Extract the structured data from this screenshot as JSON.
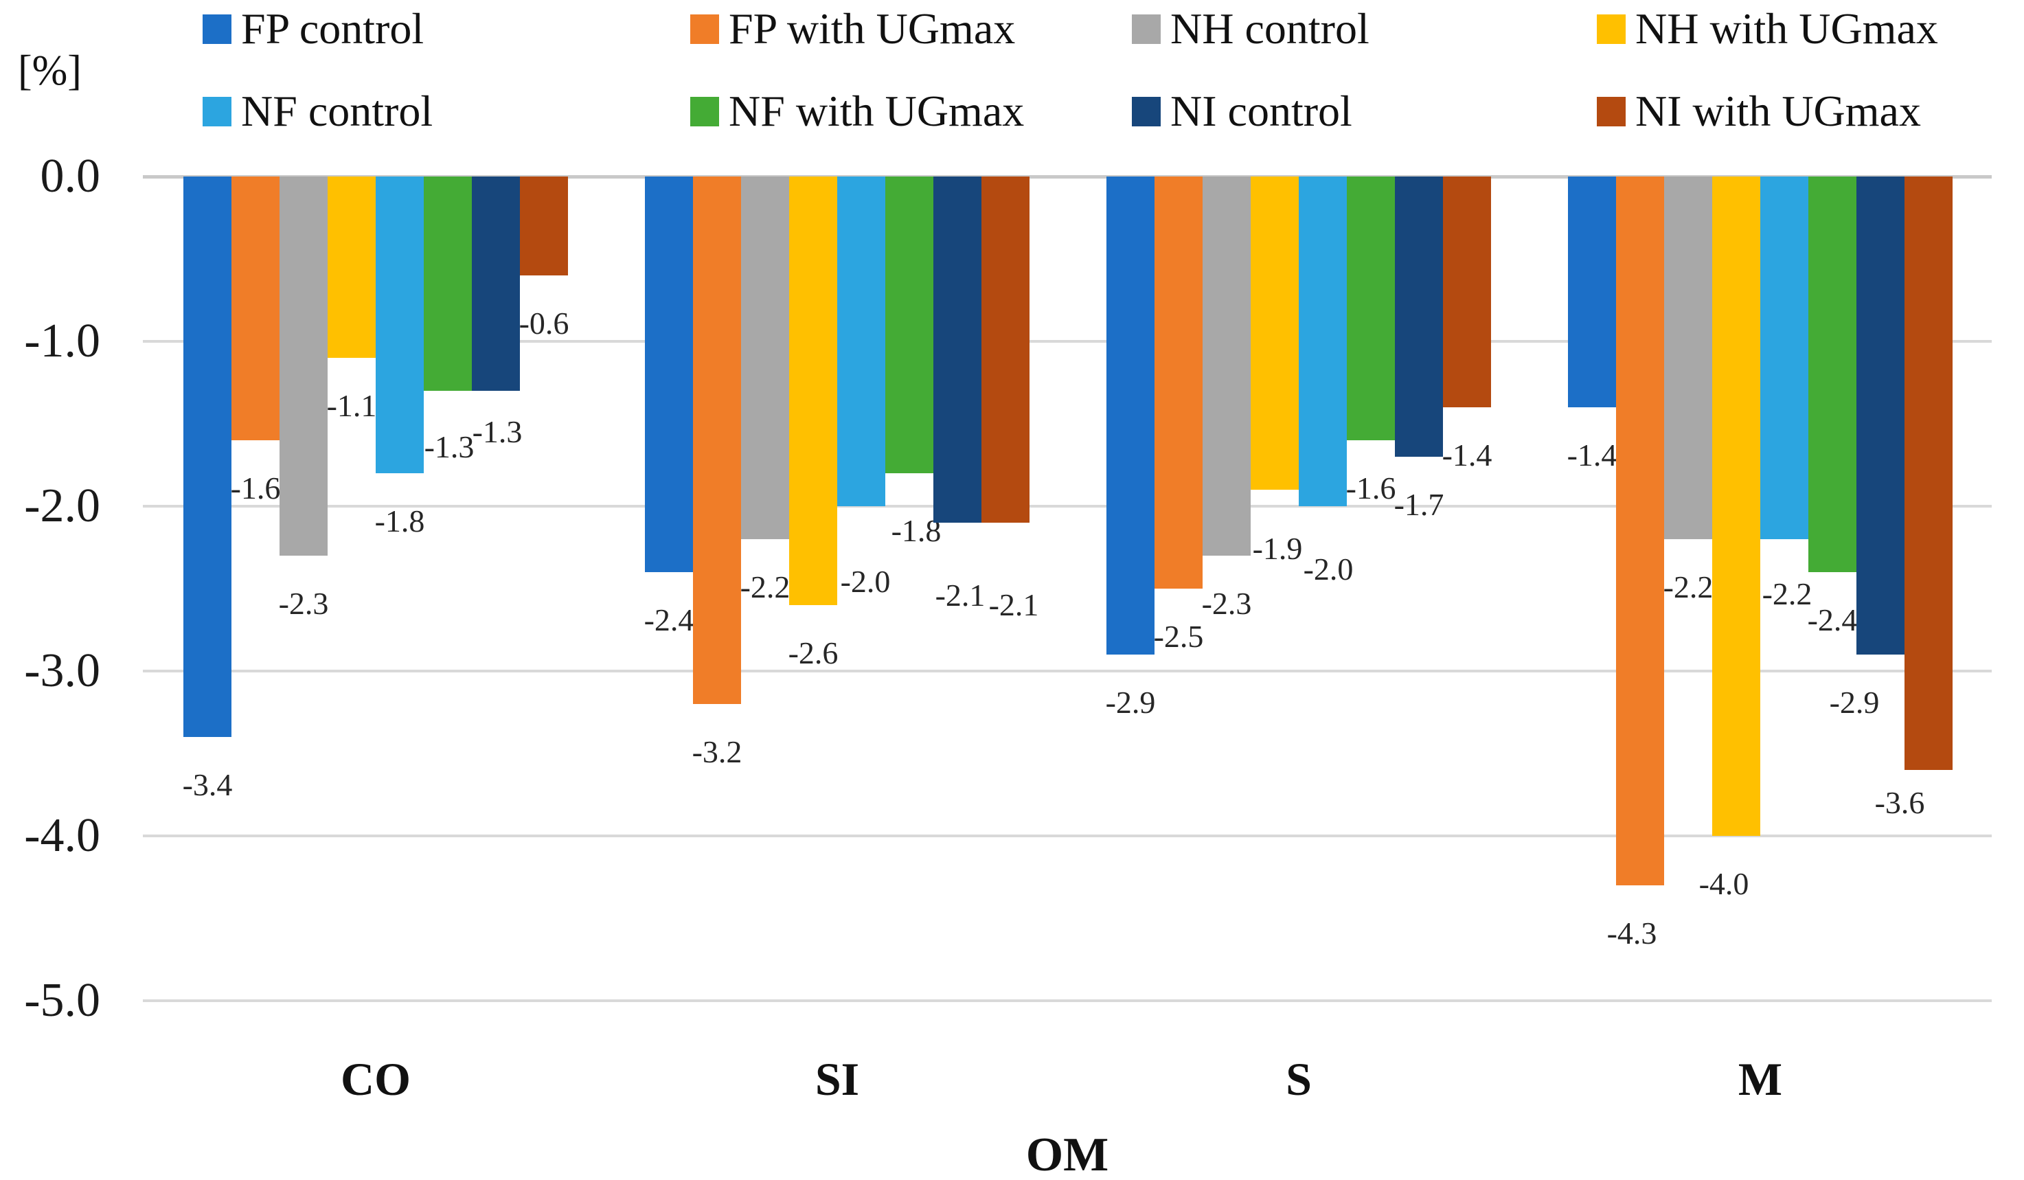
{
  "chart_data": {
    "type": "bar",
    "title": "",
    "unit_label": "[%]",
    "xlabel": "OM",
    "ylabel": "",
    "categories": [
      "CO",
      "SI",
      "S",
      "M"
    ],
    "series": [
      {
        "name": "FP control",
        "color": "#1C6FC7",
        "values": [
          -3.4,
          -2.4,
          -2.9,
          -1.4
        ]
      },
      {
        "name": "FP with UGmax",
        "color": "#F07D28",
        "values": [
          -1.6,
          -3.2,
          -2.5,
          -4.3
        ]
      },
      {
        "name": "NH control",
        "color": "#A8A8A8",
        "values": [
          -2.3,
          -2.2,
          -2.3,
          -2.2
        ]
      },
      {
        "name": "NH with UGmax",
        "color": "#FFC000",
        "values": [
          -1.1,
          -2.6,
          -1.9,
          -4.0
        ]
      },
      {
        "name": "NF control",
        "color": "#2CA5E0",
        "values": [
          -1.8,
          -2.0,
          -2.0,
          -2.2
        ]
      },
      {
        "name": "NF with UGmax",
        "color": "#44AB35",
        "values": [
          -1.3,
          -1.8,
          -1.6,
          -2.4
        ]
      },
      {
        "name": "NI control",
        "color": "#17467B",
        "values": [
          -1.3,
          -2.1,
          -1.7,
          -2.9
        ]
      },
      {
        "name": "NI with UGmax",
        "color": "#B44A10",
        "values": [
          -0.6,
          -2.1,
          -1.4,
          -3.6
        ]
      }
    ],
    "y_axis": {
      "min": -5.0,
      "max": 0.0,
      "step": 1.0,
      "tick_labels": [
        "0.0",
        "-1.0",
        "-2.0",
        "-3.0",
        "-4.0",
        "-5.0"
      ]
    },
    "value_labels": {
      "CO": [
        "-3.4",
        "-1.6",
        "-2.3",
        "-1.1",
        "-1.8",
        "-1.3",
        "-1.3",
        "-0.6"
      ],
      "SI": [
        "-2.4",
        "-3.2",
        "-2.2",
        "-2.6",
        "-2.0",
        "-1.8",
        "-2.1",
        "-2.1"
      ],
      "S": [
        "-2.9",
        "-2.5",
        "-2.3",
        "-1.9",
        "-2.0",
        "-1.6",
        "-1.7",
        "-1.4"
      ],
      "M": [
        "-1.4",
        "-4.3",
        "-2.2",
        "-4.0",
        "-2.2",
        "-2.4",
        "-2.9",
        "-3.6"
      ]
    },
    "legend_position": "top",
    "grid": true
  }
}
